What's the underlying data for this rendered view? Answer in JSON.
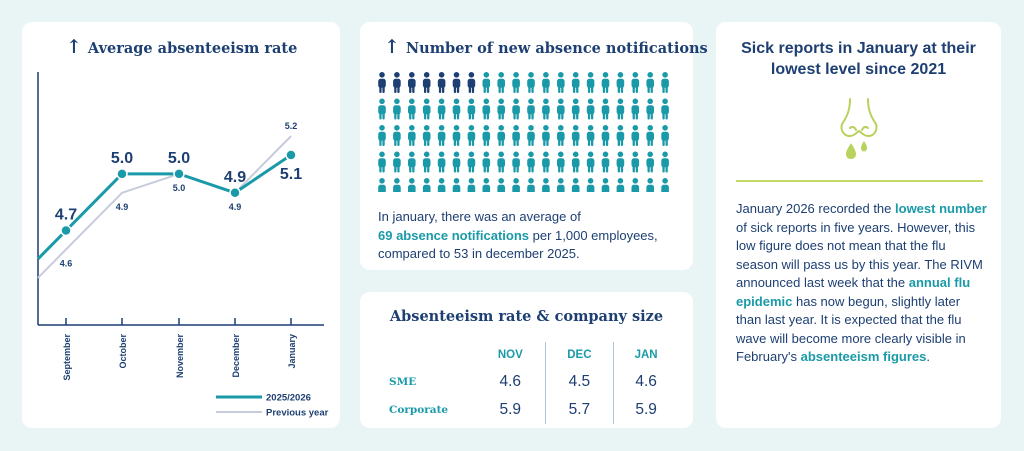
{
  "line_card": {
    "title": "Average absenteeism rate"
  },
  "chart_data": {
    "type": "line",
    "title": "Average absenteeism rate",
    "categories": [
      "September",
      "October",
      "November",
      "December",
      "January"
    ],
    "series": [
      {
        "name": "2025/2026",
        "values": [
          4.7,
          5.0,
          5.0,
          4.9,
          5.1
        ],
        "labels": [
          "4.7",
          "5.0",
          "5.0",
          "4.9",
          "5.1"
        ],
        "color": "#1a9aa8"
      },
      {
        "name": "Previous year",
        "values": [
          4.6,
          4.9,
          5.0,
          4.9,
          5.2
        ],
        "labels": [
          "4.6",
          "4.9",
          "5.0",
          "4.9",
          "5.2"
        ],
        "color": "#c6ccdb"
      }
    ],
    "ylim": [
      4.2,
      5.55
    ],
    "legend": "bottom-right",
    "grid": false
  },
  "notif_card": {
    "title": "Number of new absence notifications",
    "icon_total": 100,
    "icon_highlighted": 7,
    "highlight_color": "#1d3f72",
    "base_color": "#1a9aa8",
    "text_before": "In january, there was an average of",
    "text_highlight": "69 absence notifications",
    "text_after": "per 1,000 employees, compared to 53 in december 2025."
  },
  "size_card": {
    "title": "Absenteeism rate & company size",
    "columns": [
      "NOV",
      "DEC",
      "JAN"
    ],
    "rows": [
      {
        "label": "SME",
        "values": [
          "4.6",
          "4.5",
          "4.6"
        ]
      },
      {
        "label": "Corporate",
        "values": [
          "5.9",
          "5.7",
          "5.9"
        ]
      }
    ]
  },
  "sick_card": {
    "title": "Sick reports in January at their lowest level since 2021",
    "icon": "runny-nose-icon",
    "p1": "January 2026 recorded the",
    "h1": "lowest number",
    "p2": "of sick reports in five years. However, this low figure does not mean that the flu season will pass us by this year. The RIVM announced last week that the",
    "h2": "annual flu epidemic",
    "p3": "has now begun, slightly later than last year. It is expected that the flu wave will become more clearly visible in February's",
    "h3": "absenteeism figures",
    "p4": "."
  }
}
